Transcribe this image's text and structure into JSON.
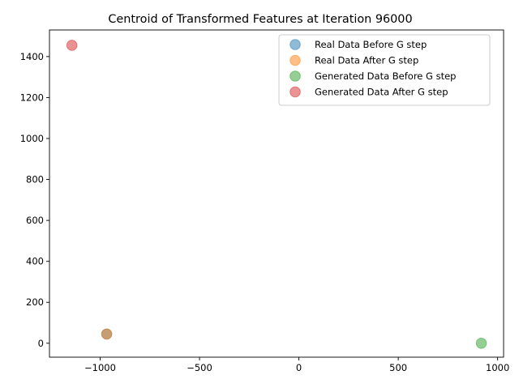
{
  "chart_data": {
    "type": "scatter",
    "title": "Centroid of Transformed Features at Iteration 96000",
    "xlabel": "",
    "ylabel": "",
    "xlim": [
      -1255,
      1030
    ],
    "ylim": [
      -68,
      1530
    ],
    "xticks": [
      -1000,
      -500,
      0,
      500,
      1000
    ],
    "xtick_labels": [
      "−1000",
      "−500",
      "0",
      "500",
      "1000"
    ],
    "yticks": [
      0,
      200,
      400,
      600,
      800,
      1000,
      1200,
      1400
    ],
    "ytick_labels": [
      "0",
      "200",
      "400",
      "600",
      "800",
      "1000",
      "1200",
      "1400"
    ],
    "grid": false,
    "legend_position": "top-right",
    "series": [
      {
        "name": "Real Data Before G step",
        "color": "#1f77b4",
        "points": [
          [
            -967,
            45
          ]
        ]
      },
      {
        "name": "Real Data After G step",
        "color": "#ff7f0e",
        "points": [
          [
            -967,
            45
          ]
        ]
      },
      {
        "name": "Generated Data Before G step",
        "color": "#2ca02c",
        "points": [
          [
            918,
            0
          ]
        ]
      },
      {
        "name": "Generated Data After G step",
        "color": "#d62728",
        "points": [
          [
            -1142,
            1455
          ]
        ]
      }
    ]
  }
}
